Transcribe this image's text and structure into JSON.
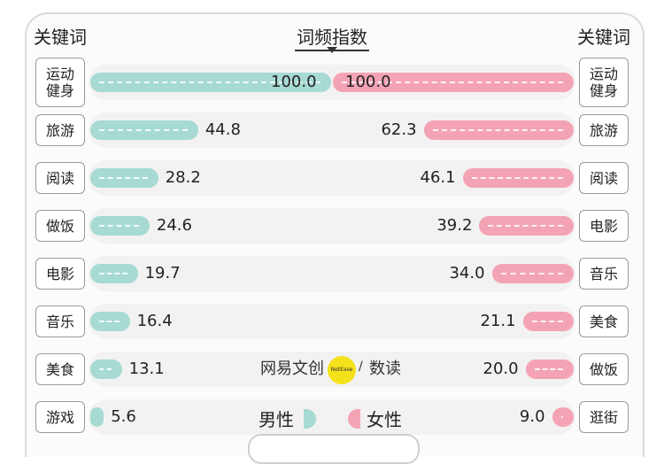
{
  "header": {
    "left_title": "关键词",
    "center_title": "词频指数",
    "right_title": "关键词"
  },
  "legend": {
    "male": "男性",
    "female": "女性"
  },
  "watermark": {
    "text": "网易文创",
    "logo_text": "NetEase",
    "slash": "/",
    "suffix": "数读"
  },
  "colors": {
    "male": "#a6dad2",
    "female": "#f4a3b5"
  },
  "chart_data": {
    "type": "bar",
    "orientation": "horizontal-butterfly",
    "title": "词频指数",
    "xlim": [
      0,
      100
    ],
    "series": [
      {
        "name": "男性",
        "categories": [
          "运动健身",
          "旅游",
          "阅读",
          "做饭",
          "电影",
          "音乐",
          "美食",
          "游戏"
        ],
        "values": [
          100.0,
          44.8,
          28.2,
          24.6,
          19.7,
          16.4,
          13.1,
          5.6
        ],
        "labels": [
          "100.0",
          "44.8",
          "28.2",
          "24.6",
          "19.7",
          "16.4",
          "13.1",
          "5.6"
        ]
      },
      {
        "name": "女性",
        "categories": [
          "运动健身",
          "旅游",
          "阅读",
          "电影",
          "音乐",
          "美食",
          "做饭",
          "逛街"
        ],
        "values": [
          100.0,
          62.3,
          46.1,
          39.2,
          34.0,
          21.1,
          20.0,
          9.0
        ],
        "labels": [
          "100.0",
          "62.3",
          "46.1",
          "39.2",
          "34.0",
          "21.1",
          "20.0",
          "9.0"
        ]
      }
    ]
  }
}
